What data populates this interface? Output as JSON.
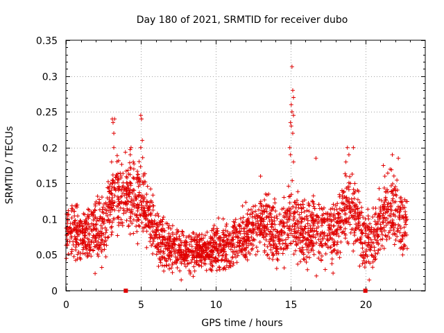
{
  "chart_data": {
    "type": "scatter",
    "title": "Day 180 of 2021, SRMTID for receiver dubo",
    "xlabel": "GPS time / hours",
    "ylabel": "SRMTID / TECUs",
    "xlim": [
      0,
      24.0
    ],
    "ylim": [
      0,
      0.35
    ],
    "x_ticks": [
      0,
      5,
      10,
      15,
      20
    ],
    "y_ticks": [
      0,
      0.05,
      0.1,
      0.15,
      0.2,
      0.25,
      0.3,
      0.35
    ],
    "y_tick_labels": [
      "0",
      "0.05",
      "0.1",
      "0.15",
      "0.2",
      "0.25",
      "0.3",
      "0.35"
    ],
    "grid": true,
    "marker": "+",
    "series_color": "#e00000",
    "axis_markers_x": [
      4.0,
      20.0
    ],
    "points_per_hour": 110,
    "profile": [
      {
        "x": 0.0,
        "y": 0.08
      },
      {
        "x": 0.5,
        "y": 0.085
      },
      {
        "x": 1.0,
        "y": 0.08
      },
      {
        "x": 1.5,
        "y": 0.08
      },
      {
        "x": 2.0,
        "y": 0.085
      },
      {
        "x": 2.5,
        "y": 0.09
      },
      {
        "x": 3.0,
        "y": 0.12
      },
      {
        "x": 3.3,
        "y": 0.15
      },
      {
        "x": 3.6,
        "y": 0.135
      },
      {
        "x": 4.0,
        "y": 0.13
      },
      {
        "x": 4.5,
        "y": 0.13
      },
      {
        "x": 5.0,
        "y": 0.13
      },
      {
        "x": 5.5,
        "y": 0.11
      },
      {
        "x": 6.0,
        "y": 0.08
      },
      {
        "x": 6.5,
        "y": 0.065
      },
      {
        "x": 7.0,
        "y": 0.06
      },
      {
        "x": 8.0,
        "y": 0.055
      },
      {
        "x": 9.0,
        "y": 0.055
      },
      {
        "x": 10.0,
        "y": 0.06
      },
      {
        "x": 11.0,
        "y": 0.065
      },
      {
        "x": 12.0,
        "y": 0.08
      },
      {
        "x": 12.5,
        "y": 0.09
      },
      {
        "x": 13.0,
        "y": 0.095
      },
      {
        "x": 14.0,
        "y": 0.085
      },
      {
        "x": 14.7,
        "y": 0.08
      },
      {
        "x": 15.0,
        "y": 0.11
      },
      {
        "x": 15.3,
        "y": 0.1
      },
      {
        "x": 15.7,
        "y": 0.08
      },
      {
        "x": 16.5,
        "y": 0.085
      },
      {
        "x": 17.5,
        "y": 0.085
      },
      {
        "x": 18.0,
        "y": 0.08
      },
      {
        "x": 18.5,
        "y": 0.11
      },
      {
        "x": 19.0,
        "y": 0.12
      },
      {
        "x": 19.5,
        "y": 0.1
      },
      {
        "x": 20.0,
        "y": 0.075
      },
      {
        "x": 20.5,
        "y": 0.07
      },
      {
        "x": 21.0,
        "y": 0.09
      },
      {
        "x": 21.5,
        "y": 0.12
      },
      {
        "x": 22.0,
        "y": 0.11
      },
      {
        "x": 22.5,
        "y": 0.095
      },
      {
        "x": 22.8,
        "y": 0.09
      }
    ],
    "spread": [
      {
        "x": 0.0,
        "s": 0.022
      },
      {
        "x": 3.0,
        "s": 0.03
      },
      {
        "x": 5.0,
        "s": 0.035
      },
      {
        "x": 6.0,
        "s": 0.022
      },
      {
        "x": 9.0,
        "s": 0.016
      },
      {
        "x": 12.0,
        "s": 0.025
      },
      {
        "x": 15.0,
        "s": 0.03
      },
      {
        "x": 18.0,
        "s": 0.03
      },
      {
        "x": 22.8,
        "s": 0.03
      }
    ],
    "outliers": [
      {
        "x": 3.1,
        "y": 0.24
      },
      {
        "x": 3.15,
        "y": 0.235
      },
      {
        "x": 3.2,
        "y": 0.22
      },
      {
        "x": 3.25,
        "y": 0.24
      },
      {
        "x": 3.2,
        "y": 0.2
      },
      {
        "x": 3.05,
        "y": 0.18
      },
      {
        "x": 4.3,
        "y": 0.19
      },
      {
        "x": 4.35,
        "y": 0.2
      },
      {
        "x": 4.5,
        "y": 0.18
      },
      {
        "x": 5.0,
        "y": 0.245
      },
      {
        "x": 5.05,
        "y": 0.24
      },
      {
        "x": 5.1,
        "y": 0.21
      },
      {
        "x": 5.0,
        "y": 0.2
      },
      {
        "x": 1.95,
        "y": 0.024
      },
      {
        "x": 13.0,
        "y": 0.16
      },
      {
        "x": 15.1,
        "y": 0.313
      },
      {
        "x": 15.15,
        "y": 0.28
      },
      {
        "x": 15.2,
        "y": 0.27
      },
      {
        "x": 15.05,
        "y": 0.26
      },
      {
        "x": 15.1,
        "y": 0.25
      },
      {
        "x": 15.2,
        "y": 0.245
      },
      {
        "x": 15.0,
        "y": 0.235
      },
      {
        "x": 15.05,
        "y": 0.23
      },
      {
        "x": 15.15,
        "y": 0.22
      },
      {
        "x": 14.95,
        "y": 0.2
      },
      {
        "x": 15.0,
        "y": 0.19
      },
      {
        "x": 15.2,
        "y": 0.18
      },
      {
        "x": 16.7,
        "y": 0.185
      },
      {
        "x": 18.8,
        "y": 0.2
      },
      {
        "x": 18.9,
        "y": 0.19
      },
      {
        "x": 19.2,
        "y": 0.2
      },
      {
        "x": 18.7,
        "y": 0.18
      },
      {
        "x": 21.2,
        "y": 0.175
      },
      {
        "x": 21.8,
        "y": 0.19
      },
      {
        "x": 22.2,
        "y": 0.185
      },
      {
        "x": 21.3,
        "y": 0.16
      },
      {
        "x": 7.7,
        "y": 0.015
      },
      {
        "x": 8.5,
        "y": 0.02
      },
      {
        "x": 10.5,
        "y": 0.03
      }
    ]
  }
}
